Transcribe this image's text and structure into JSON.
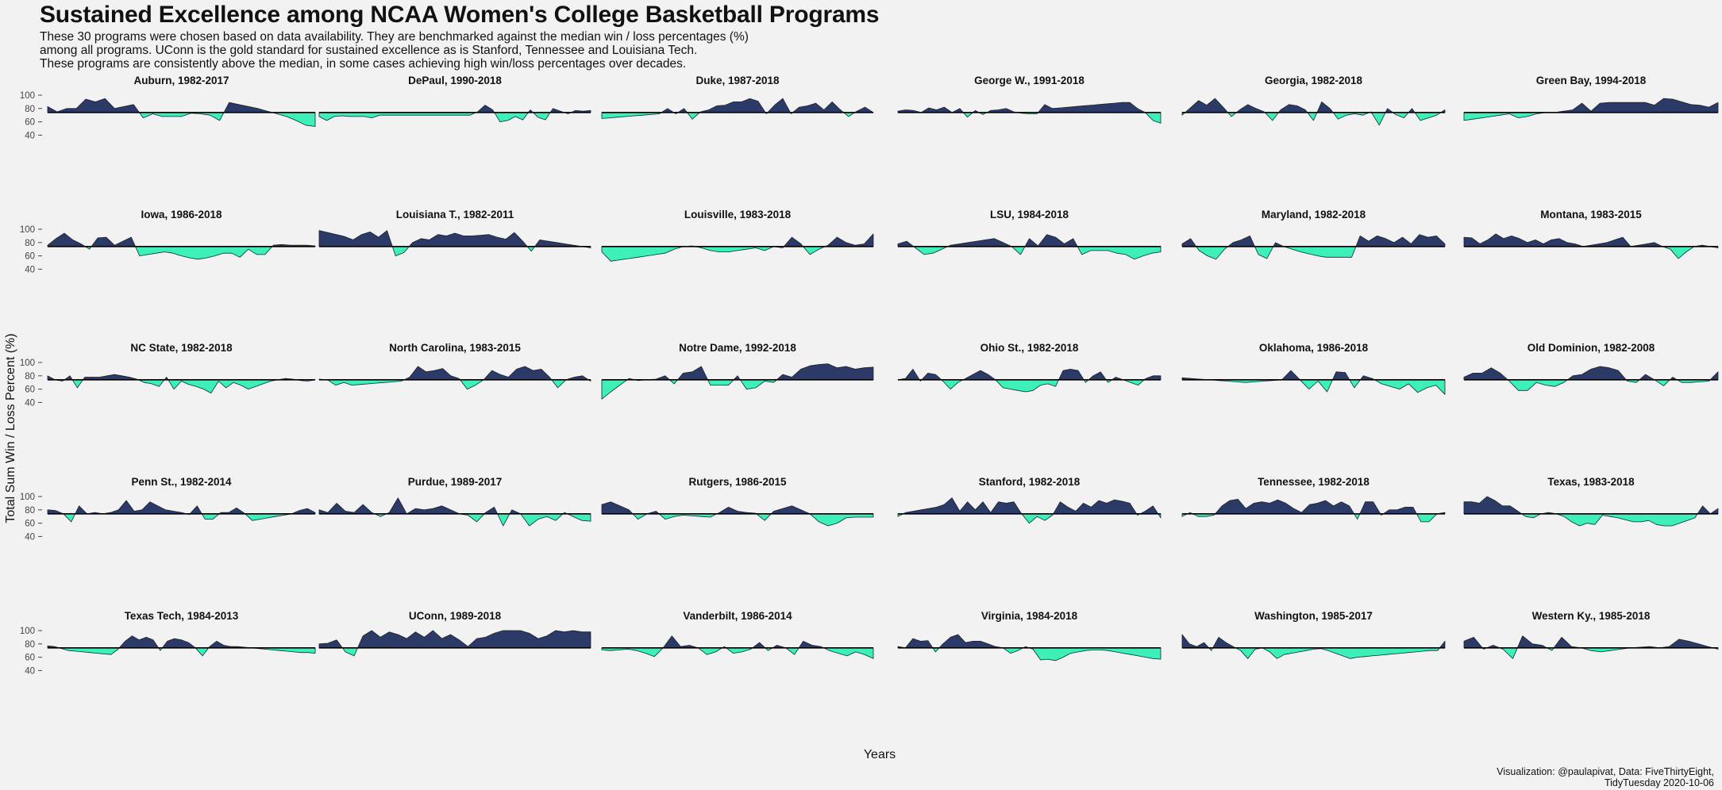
{
  "title": "Sustained Excellence among NCAA Women's College Basketball Programs",
  "subtitle": [
    "These 30 programs were chosen based on data availability. They are benchmarked against the median win / loss percentages (%)",
    "among all programs. UConn is the gold standard for sustained excellence as is Stanford, Tennessee and Louisiana Tech.",
    "These programs are consistently above the median, in some cases achieving high win/loss percentages over decades."
  ],
  "xlabel": "Years",
  "ylabel": "Total Sum Win / Loss Percent (%)",
  "caption": [
    "Visualization: @paulapivat, Data: FiveThirtyEight,",
    "TidyTuesday 2020-10-06"
  ],
  "colors": {
    "above": "#2b3a67",
    "below": "#3ef0b8",
    "baseline": "#000000",
    "background": "#f2f2f2"
  },
  "chart_data": {
    "type": "area",
    "facet": "small-multiples",
    "columns": 6,
    "median": 74,
    "ylim": [
      35,
      100
    ],
    "yticks": [
      40,
      60,
      80,
      100
    ],
    "grid": false,
    "panels": [
      {
        "label": "Auburn, 1982-2017",
        "values": [
          83,
          75,
          80,
          80,
          94,
          90,
          95,
          80,
          83,
          86,
          66,
          72,
          68,
          68,
          68,
          73,
          72,
          70,
          62,
          89,
          86,
          83,
          80,
          76,
          72,
          68,
          62,
          55,
          53
        ]
      },
      {
        "label": "DePaul, 1990-2018",
        "values": [
          68,
          62,
          68,
          69,
          68,
          68,
          68,
          66,
          70,
          70,
          70,
          70,
          70,
          70,
          70,
          70,
          70,
          70,
          70,
          70,
          70,
          75,
          85,
          78,
          60,
          62,
          68,
          63,
          78,
          67,
          63,
          80,
          76,
          72,
          77,
          76,
          77
        ]
      },
      {
        "label": "Duke, 1987-2018",
        "values": [
          65,
          66,
          67,
          68,
          69,
          70,
          71,
          72,
          80,
          72,
          80,
          64,
          75,
          78,
          84,
          85,
          90,
          90,
          95,
          91,
          72,
          85,
          95,
          72,
          82,
          84,
          88,
          78,
          90,
          78,
          68,
          76,
          82,
          74
        ]
      },
      {
        "label": "George W., 1991-2018",
        "values": [
          76,
          78,
          77,
          74,
          81,
          78,
          82,
          74,
          80,
          67,
          77,
          71,
          77,
          78,
          80,
          75,
          73,
          72,
          72,
          86,
          80,
          81,
          82,
          83,
          84,
          85,
          86,
          87,
          88,
          89,
          89,
          80,
          74,
          62,
          58
        ]
      },
      {
        "label": "Georgia, 1982-2018",
        "values": [
          70,
          81,
          92,
          85,
          95,
          82,
          68,
          78,
          86,
          80,
          75,
          62,
          78,
          86,
          84,
          78,
          62,
          90,
          80,
          64,
          70,
          72,
          70,
          75,
          55,
          80,
          71,
          66,
          80,
          62,
          66,
          70,
          78
        ]
      },
      {
        "label": "Green Bay, 1994-2018",
        "values": [
          62,
          64,
          66,
          68,
          70,
          72,
          66,
          68,
          72,
          74,
          74,
          76,
          78,
          88,
          76,
          88,
          89,
          89,
          89,
          89,
          89,
          85,
          95,
          94,
          90,
          86,
          85,
          82,
          89
        ]
      },
      {
        "label": "Iowa, 1986-2018",
        "values": [
          76,
          86,
          94,
          84,
          78,
          70,
          87,
          88,
          76,
          82,
          88,
          60,
          62,
          64,
          66,
          64,
          60,
          57,
          55,
          57,
          60,
          64,
          64,
          58,
          70,
          62,
          62,
          76,
          77,
          76,
          76,
          76,
          75
        ]
      },
      {
        "label": "Louisiana T., 1982-2011",
        "values": [
          98,
          95,
          92,
          89,
          84,
          92,
          96,
          88,
          98,
          60,
          65,
          80,
          86,
          84,
          92,
          90,
          94,
          90,
          90,
          91,
          92,
          88,
          85,
          95,
          82,
          67,
          84,
          82,
          80,
          78,
          76,
          74,
          72
        ]
      },
      {
        "label": "Louisville, 1983-2018",
        "values": [
          66,
          52,
          54,
          56,
          58,
          60,
          62,
          64,
          70,
          74,
          75,
          72,
          68,
          66,
          66,
          68,
          70,
          72,
          68,
          74,
          72,
          88,
          78,
          62,
          70,
          76,
          88,
          80,
          76,
          78,
          93
        ]
      },
      {
        "label": "LSU, 1984-2018",
        "values": [
          78,
          82,
          72,
          62,
          64,
          70,
          76,
          78,
          80,
          82,
          84,
          86,
          80,
          74,
          62,
          86,
          75,
          92,
          88,
          78,
          86,
          62,
          68,
          68,
          68,
          64,
          62,
          55,
          60,
          64,
          66
        ]
      },
      {
        "label": "Maryland, 1982-2018",
        "values": [
          78,
          86,
          68,
          60,
          55,
          70,
          80,
          84,
          90,
          62,
          56,
          80,
          74,
          70,
          66,
          63,
          60,
          58,
          58,
          58,
          58,
          90,
          82,
          90,
          86,
          80,
          88,
          78,
          92,
          88,
          90,
          78
        ]
      },
      {
        "label": "Montana, 1983-2015",
        "values": [
          88,
          87,
          78,
          84,
          93,
          86,
          90,
          86,
          80,
          84,
          78,
          84,
          86,
          80,
          78,
          74,
          76,
          78,
          80,
          84,
          88,
          74,
          76,
          78,
          80,
          74,
          70,
          56,
          66,
          74,
          76,
          74,
          72
        ]
      },
      {
        "label": "NC State, 1982-2018",
        "values": [
          80,
          74,
          72,
          80,
          62,
          78,
          78,
          78,
          80,
          82,
          80,
          78,
          75,
          70,
          68,
          64,
          78,
          60,
          72,
          67,
          64,
          60,
          54,
          72,
          62,
          70,
          66,
          60,
          64,
          68,
          72,
          74,
          76,
          75,
          73,
          72,
          74
        ]
      },
      {
        "label": "North Carolina, 1983-2015",
        "values": [
          75,
          74,
          66,
          70,
          66,
          67,
          68,
          69,
          70,
          71,
          72,
          78,
          94,
          86,
          88,
          91,
          80,
          76,
          60,
          66,
          74,
          88,
          82,
          78,
          90,
          94,
          88,
          90,
          78,
          62,
          74,
          78,
          80,
          72
        ]
      },
      {
        "label": "Notre Dame, 1992-2018",
        "values": [
          45,
          56,
          66,
          76,
          73,
          74,
          75,
          80,
          68,
          84,
          86,
          94,
          66,
          66,
          66,
          80,
          60,
          62,
          72,
          70,
          82,
          78,
          90,
          95,
          97,
          98,
          92,
          94,
          90,
          92,
          93
        ]
      },
      {
        "label": "Ohio St., 1982-2018",
        "values": [
          74,
          76,
          90,
          72,
          84,
          82,
          72,
          60,
          70,
          76,
          82,
          88,
          82,
          74,
          62,
          60,
          58,
          56,
          58,
          66,
          68,
          64,
          88,
          90,
          88,
          70,
          80,
          86,
          70,
          78,
          74,
          70,
          66,
          76,
          80,
          80
        ]
      },
      {
        "label": "Oklahoma, 1986-2018",
        "values": [
          77,
          76,
          75,
          74,
          73,
          72,
          71,
          70,
          71,
          72,
          73,
          74,
          88,
          74,
          60,
          72,
          56,
          86,
          85,
          62,
          80,
          76,
          68,
          64,
          60,
          68,
          55,
          62,
          66,
          52
        ]
      },
      {
        "label": "Old Dominion, 1982-2008",
        "values": [
          78,
          84,
          84,
          92,
          84,
          72,
          58,
          58,
          70,
          66,
          64,
          70,
          80,
          82,
          90,
          94,
          92,
          88,
          72,
          70,
          82,
          74,
          65,
          78,
          70,
          70,
          71,
          72,
          86
        ]
      },
      {
        "label": "Penn St., 1982-2014",
        "values": [
          80,
          79,
          74,
          62,
          86,
          74,
          76,
          74,
          76,
          80,
          94,
          78,
          80,
          92,
          86,
          80,
          78,
          76,
          73,
          86,
          66,
          66,
          76,
          76,
          83,
          75,
          64,
          66,
          68,
          70,
          72,
          74,
          79,
          82,
          76
        ]
      },
      {
        "label": "Purdue, 1989-2017",
        "values": [
          80,
          76,
          90,
          78,
          76,
          88,
          76,
          70,
          76,
          98,
          74,
          82,
          80,
          82,
          86,
          80,
          74,
          72,
          62,
          76,
          84,
          56,
          80,
          74,
          56,
          66,
          70,
          64,
          76,
          70,
          64,
          63
        ]
      },
      {
        "label": "Rutgers, 1986-2015",
        "values": [
          88,
          92,
          86,
          80,
          66,
          74,
          78,
          66,
          70,
          72,
          71,
          70,
          69,
          76,
          84,
          78,
          76,
          75,
          64,
          78,
          82,
          86,
          80,
          74,
          62,
          56,
          60,
          68,
          69,
          69,
          69
        ]
      },
      {
        "label": "Stanford, 1982-2018",
        "values": [
          70,
          76,
          78,
          80,
          82,
          84,
          88,
          98,
          78,
          92,
          80,
          92,
          76,
          92,
          90,
          92,
          74,
          60,
          70,
          64,
          72,
          92,
          84,
          78,
          90,
          84,
          94,
          90,
          95,
          93,
          90,
          72,
          78,
          86,
          68
        ]
      },
      {
        "label": "Tennessee, 1982-2018",
        "values": [
          70,
          76,
          70,
          70,
          72,
          86,
          94,
          96,
          82,
          90,
          92,
          90,
          95,
          90,
          82,
          76,
          88,
          90,
          94,
          86,
          92,
          86,
          66,
          92,
          92,
          72,
          80,
          80,
          84,
          84,
          62,
          62,
          74,
          76
        ]
      },
      {
        "label": "Texas, 1983-2018",
        "values": [
          92,
          92,
          90,
          100,
          94,
          86,
          86,
          78,
          70,
          68,
          74,
          76,
          74,
          70,
          62,
          56,
          60,
          58,
          72,
          70,
          68,
          65,
          62,
          62,
          64,
          58,
          56,
          56,
          60,
          64,
          68,
          86,
          74,
          82
        ]
      },
      {
        "label": "Texas Tech, 1984-2013",
        "values": [
          77,
          76,
          73,
          70,
          69,
          68,
          67,
          66,
          65,
          64,
          72,
          84,
          92,
          86,
          90,
          86,
          70,
          84,
          88,
          86,
          82,
          74,
          62,
          76,
          84,
          78,
          76,
          76,
          75,
          74,
          73,
          72,
          71,
          70,
          69,
          68,
          67,
          67,
          66
        ]
      },
      {
        "label": "UConn, 1989-2018",
        "values": [
          80,
          81,
          86,
          68,
          62,
          92,
          100,
          90,
          98,
          94,
          88,
          98,
          90,
          100,
          88,
          94,
          86,
          76,
          88,
          90,
          96,
          100,
          100,
          100,
          96,
          88,
          92,
          100,
          98,
          100,
          98,
          98
        ]
      },
      {
        "label": "Vanderbilt, 1986-2014",
        "values": [
          71,
          70,
          71,
          72,
          70,
          66,
          61,
          74,
          92,
          76,
          78,
          74,
          64,
          68,
          76,
          66,
          68,
          72,
          82,
          70,
          78,
          74,
          64,
          84,
          78,
          76,
          70,
          66,
          62,
          68,
          64,
          58
        ]
      },
      {
        "label": "Virginia, 1984-2018",
        "values": [
          76,
          74,
          88,
          84,
          85,
          68,
          80,
          90,
          94,
          82,
          84,
          84,
          80,
          76,
          74,
          66,
          70,
          76,
          72,
          56,
          57,
          55,
          60,
          66,
          68,
          70,
          71,
          71,
          70,
          68,
          66,
          64,
          62,
          60,
          58,
          57
        ]
      },
      {
        "label": "Washington, 1985-2017",
        "values": [
          94,
          80,
          76,
          82,
          70,
          90,
          82,
          76,
          70,
          58,
          72,
          74,
          68,
          58,
          64,
          66,
          68,
          70,
          72,
          73,
          70,
          66,
          62,
          58,
          60,
          61,
          62,
          63,
          64,
          65,
          66,
          67,
          68,
          69,
          70,
          70,
          84
        ]
      },
      {
        "label": "Western Ky., 1985-2018",
        "values": [
          84,
          90,
          72,
          78,
          72,
          58,
          92,
          80,
          78,
          70,
          90,
          76,
          74,
          70,
          68,
          70,
          72,
          74,
          75,
          76,
          74,
          76,
          87,
          84,
          80,
          76,
          72
        ]
      }
    ]
  }
}
